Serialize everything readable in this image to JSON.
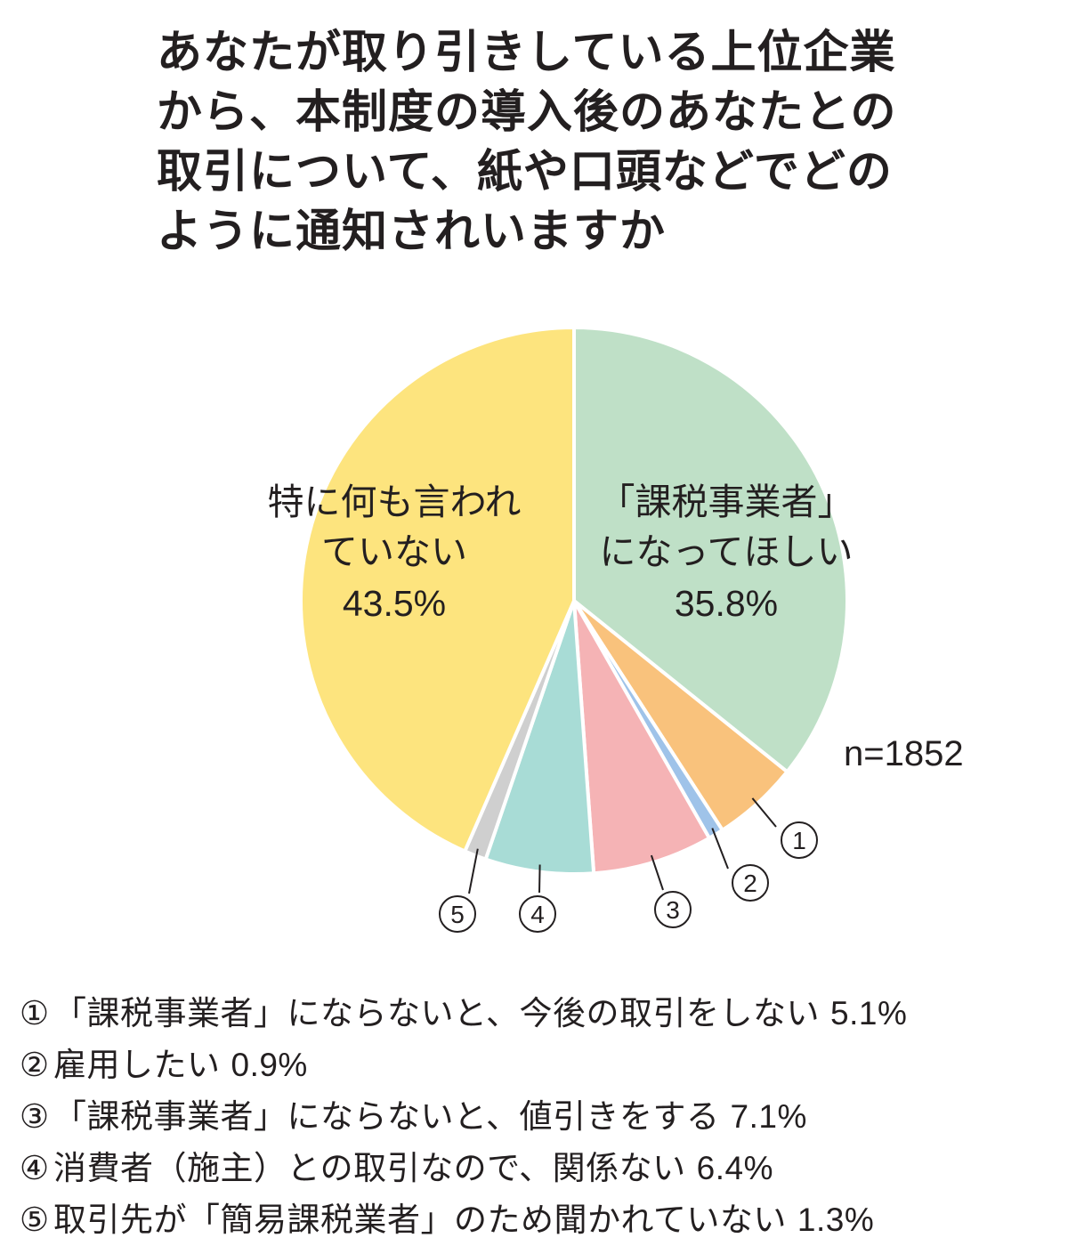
{
  "title": "あなたが取り引きしている上位企業から、本制度の導入後のあなたとの取引について、紙や口頭などでどのように通知されいますか",
  "n_label": "n=1852",
  "chart_data": {
    "type": "pie",
    "start": "12 o'clock",
    "direction": "clockwise",
    "slices": [
      {
        "key": "taxable",
        "label_lines": [
          "「課税事業者」",
          "になってほしい"
        ],
        "value_text": "35.8%",
        "value": 35.8,
        "color": "#bfe0c7"
      },
      {
        "key": "1",
        "marker": "①",
        "label": "「課税事業者」にならないと、今後の取引をしない",
        "value_text": "5.1%",
        "value": 5.1,
        "color": "#f9c27c"
      },
      {
        "key": "2",
        "marker": "②",
        "label": "雇用したい",
        "value_text": "0.9%",
        "value": 0.9,
        "color": "#9fc3e9"
      },
      {
        "key": "3",
        "marker": "③",
        "label": "「課税事業者」にならないと、値引きをする",
        "value_text": "7.1%",
        "value": 7.1,
        "color": "#f5b3b5"
      },
      {
        "key": "4",
        "marker": "④",
        "label": "消費者（施主）との取引なので、関係ない",
        "value_text": "6.4%",
        "value": 6.4,
        "color": "#a8dcd6"
      },
      {
        "key": "5",
        "marker": "⑤",
        "label": "取引先が「簡易課税業者」のため聞かれていない",
        "value_text": "1.3%",
        "value": 1.3,
        "color": "#cfcfcf"
      },
      {
        "key": "none",
        "label_lines": [
          "特に何も言われ",
          "ていない"
        ],
        "value_text": "43.5%",
        "value": 43.5,
        "color": "#fde47e"
      }
    ]
  }
}
